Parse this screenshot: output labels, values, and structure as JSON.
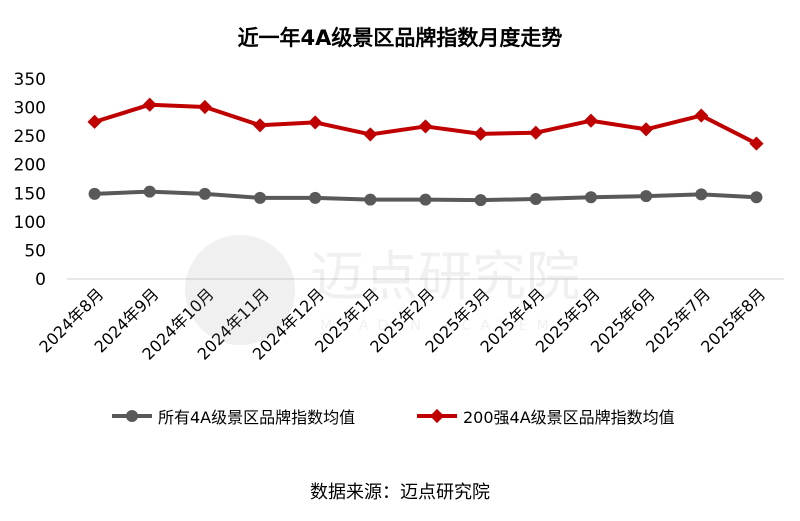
{
  "chart_data": {
    "type": "line",
    "title": "近一年4A级景区品牌指数月度走势",
    "categories": [
      "2024年8月",
      "2024年9月",
      "2024年10月",
      "2024年11月",
      "2024年12月",
      "2025年1月",
      "2025年2月",
      "2025年3月",
      "2025年4月",
      "2025年5月",
      "2025年6月",
      "2025年7月",
      "2025年8月"
    ],
    "ylim": [
      0,
      350
    ],
    "yticks": [
      "0",
      "50",
      "100",
      "150",
      "200",
      "250",
      "300",
      "350"
    ],
    "grid": false,
    "legend_position": "bottom",
    "series": [
      {
        "name": "所有4A级景区品牌指数均值",
        "color": "#595959",
        "values": [
          149,
          153,
          149,
          142,
          142,
          139,
          139,
          138,
          140,
          143,
          145,
          148,
          143
        ]
      },
      {
        "name": "200强4A级景区品牌指数均值",
        "color": "#C00000",
        "values": [
          275,
          305,
          301,
          269,
          274,
          253,
          267,
          254,
          256,
          277,
          262,
          286,
          237
        ]
      }
    ]
  },
  "source_text": "数据来源：迈点研究院",
  "watermark": {
    "cn": "迈点研究院",
    "en": "MEADIN ACADEMY"
  }
}
